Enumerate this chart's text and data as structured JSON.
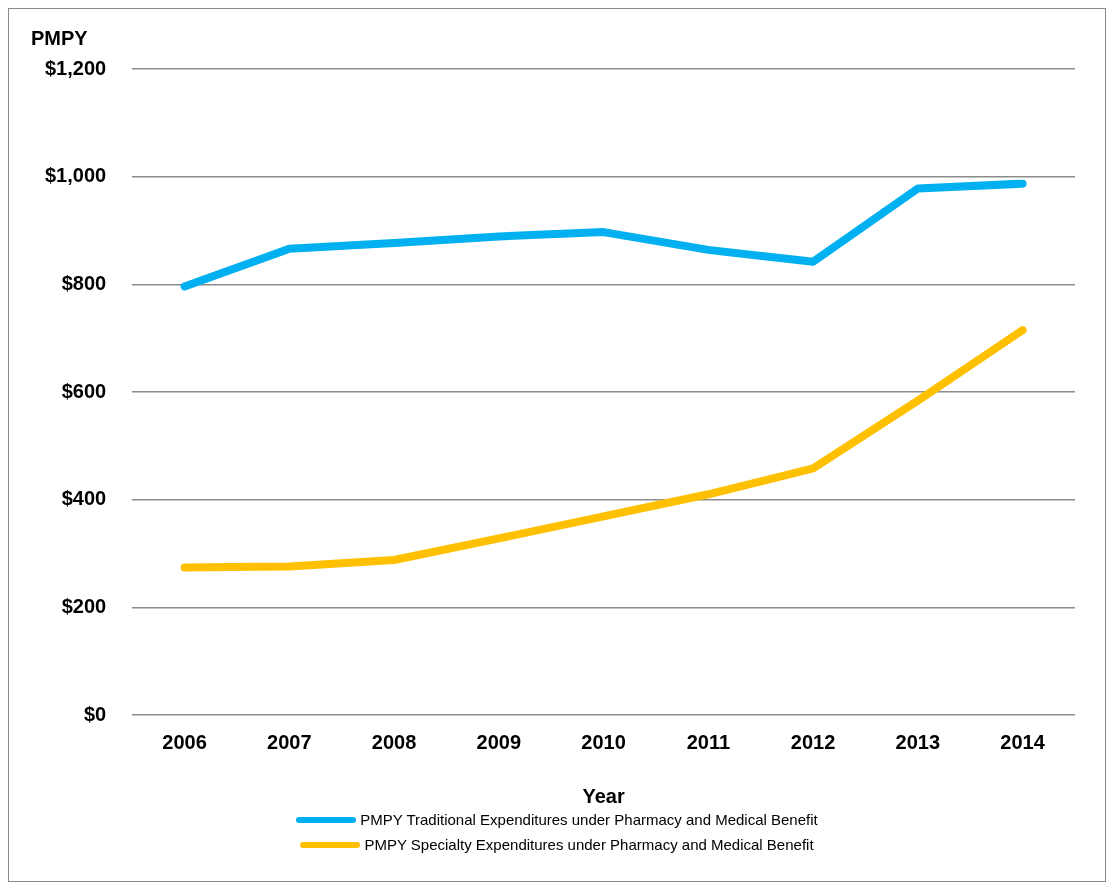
{
  "chart_data": {
    "type": "line",
    "ylabel": "PMPY",
    "xlabel": "Year",
    "categories": [
      "2006",
      "2007",
      "2008",
      "2009",
      "2010",
      "2011",
      "2012",
      "2013",
      "2014"
    ],
    "series": [
      {
        "name": "PMPY Traditional Expenditures under Pharmacy and Medical Benefit",
        "color": "#00b0f0",
        "values": [
          796,
          866,
          877,
          889,
          897,
          864,
          842,
          978,
          987
        ]
      },
      {
        "name": "PMPY Specialty Expenditures under Pharmacy and Medical Benefit",
        "color": "#ffc000",
        "values": [
          274,
          276,
          288,
          328,
          369,
          410,
          458,
          584,
          715
        ]
      }
    ],
    "ylim": [
      0,
      1200
    ],
    "yticks": [
      {
        "value": 0,
        "label": "$0"
      },
      {
        "value": 200,
        "label": "$200"
      },
      {
        "value": 400,
        "label": "$400"
      },
      {
        "value": 600,
        "label": "$600"
      },
      {
        "value": 800,
        "label": "$800"
      },
      {
        "value": 1000,
        "label": "$1,000"
      },
      {
        "value": 1200,
        "label": "$1,200"
      }
    ],
    "grid": "y",
    "legend": "bottom",
    "marker": "none",
    "line_style": "solid"
  }
}
